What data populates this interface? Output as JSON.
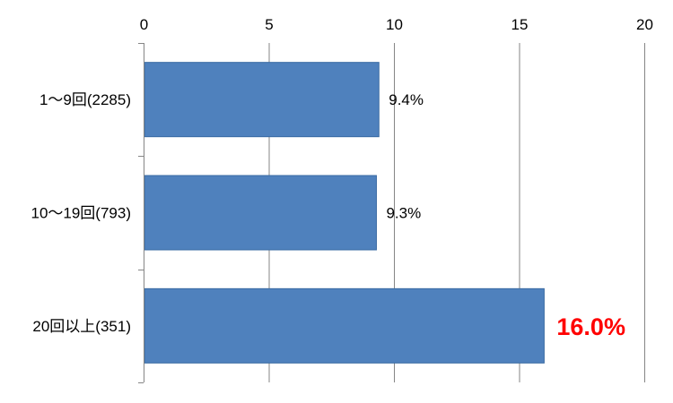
{
  "chart_data": {
    "type": "bar",
    "orientation": "horizontal",
    "categories": [
      "1〜9回(2285)",
      "10〜19回(793)",
      "20回以上(351)"
    ],
    "values": [
      9.4,
      9.3,
      16.0
    ],
    "data_labels": [
      "9.4%",
      "9.3%",
      "16.0%"
    ],
    "highlight_index": 2,
    "xlim": [
      0,
      20
    ],
    "xticks": [
      0,
      5,
      10,
      15,
      20
    ],
    "x_axis_position": "top",
    "grid": true,
    "legend": "none",
    "title": "",
    "xlabel": "",
    "ylabel": "",
    "colors": {
      "bar": "#4F81BD",
      "bar_edge": "#3A6BA3",
      "grid": "#868686",
      "axis": "#868686",
      "text": "#000000",
      "highlight_label": "#FF0000"
    }
  }
}
